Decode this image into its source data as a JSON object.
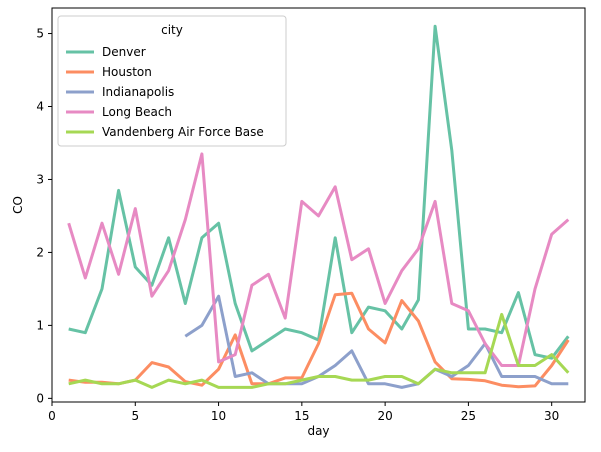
{
  "chart_data": {
    "type": "line",
    "xlabel": "day",
    "ylabel": "CO",
    "xlim": [
      0,
      32
    ],
    "ylim": [
      -0.05,
      5.35
    ],
    "xticks": [
      0,
      5,
      10,
      15,
      20,
      25,
      30
    ],
    "yticks": [
      0,
      1,
      2,
      3,
      4,
      5
    ],
    "grid": false,
    "legend": {
      "title": "city",
      "placement": "top-left"
    },
    "series": [
      {
        "name": "Denver",
        "color": "#66c2a5",
        "x": [
          1,
          2,
          3,
          4,
          5,
          6,
          7,
          8,
          9,
          10,
          11,
          12,
          13,
          14,
          15,
          16,
          17,
          18,
          19,
          20,
          21,
          22,
          23,
          24,
          25,
          26,
          27,
          28,
          29,
          30,
          31
        ],
        "y": [
          0.95,
          0.9,
          1.5,
          2.85,
          1.8,
          1.55,
          2.2,
          1.3,
          2.2,
          2.4,
          1.3,
          0.65,
          0.8,
          0.95,
          0.9,
          0.8,
          2.2,
          0.9,
          1.25,
          1.2,
          0.95,
          1.35,
          5.1,
          3.4,
          0.95,
          0.95,
          0.9,
          1.45,
          0.6,
          0.55,
          0.85
        ]
      },
      {
        "name": "Houston",
        "color": "#fc8d62",
        "x": [
          1,
          2,
          3,
          4,
          5,
          6,
          7,
          8,
          9,
          10,
          11,
          12,
          13,
          14,
          15,
          16,
          17,
          18,
          19,
          20,
          21,
          22,
          23,
          24,
          25,
          26,
          27,
          28,
          29,
          30,
          31
        ],
        "y": [
          0.25,
          0.22,
          0.22,
          0.2,
          0.25,
          0.49,
          0.43,
          0.23,
          0.18,
          0.4,
          0.87,
          0.2,
          0.2,
          0.28,
          0.28,
          0.75,
          1.42,
          1.44,
          0.95,
          0.76,
          1.34,
          1.06,
          0.5,
          0.27,
          0.26,
          0.24,
          0.18,
          0.16,
          0.17,
          0.45,
          0.8
        ]
      },
      {
        "name": "Indianapolis",
        "color": "#8da0cb",
        "x": [
          8,
          9,
          10,
          11,
          12,
          13,
          14,
          15,
          16,
          17,
          18,
          19,
          20,
          21,
          22,
          23,
          24,
          25,
          26,
          27,
          28,
          29,
          30,
          31
        ],
        "y": [
          0.85,
          1.0,
          1.4,
          0.3,
          0.35,
          0.2,
          0.2,
          0.2,
          0.3,
          0.45,
          0.65,
          0.2,
          0.2,
          0.15,
          0.2,
          0.4,
          0.3,
          0.45,
          0.75,
          0.3,
          0.3,
          0.3,
          0.2,
          0.2
        ]
      },
      {
        "name": "Long Beach",
        "color": "#e78ac3",
        "x": [
          1,
          2,
          3,
          4,
          5,
          6,
          7,
          8,
          9,
          10,
          11,
          12,
          13,
          14,
          15,
          16,
          17,
          18,
          19,
          20,
          21,
          22,
          23,
          24,
          25,
          26,
          27,
          28,
          29,
          30,
          31
        ],
        "y": [
          2.4,
          1.65,
          2.4,
          1.7,
          2.6,
          1.4,
          1.75,
          2.45,
          3.35,
          0.5,
          0.6,
          1.55,
          1.7,
          1.1,
          2.7,
          2.5,
          2.9,
          1.9,
          2.05,
          1.3,
          1.75,
          2.05,
          2.7,
          1.3,
          1.2,
          0.75,
          0.45,
          0.45,
          1.5,
          2.25,
          2.45
        ]
      },
      {
        "name": "Vandenberg Air Force Base",
        "color": "#a6d854",
        "x": [
          1,
          2,
          3,
          4,
          5,
          6,
          7,
          8,
          9,
          10,
          11,
          12,
          13,
          14,
          15,
          16,
          17,
          18,
          19,
          20,
          21,
          22,
          23,
          24,
          25,
          26,
          27,
          28,
          29,
          30,
          31
        ],
        "y": [
          0.2,
          0.25,
          0.2,
          0.2,
          0.25,
          0.15,
          0.25,
          0.2,
          0.25,
          0.15,
          0.15,
          0.15,
          0.2,
          0.2,
          0.25,
          0.3,
          0.3,
          0.25,
          0.25,
          0.3,
          0.3,
          0.2,
          0.4,
          0.35,
          0.35,
          0.35,
          1.15,
          0.45,
          0.45,
          0.6,
          0.35
        ]
      }
    ]
  }
}
